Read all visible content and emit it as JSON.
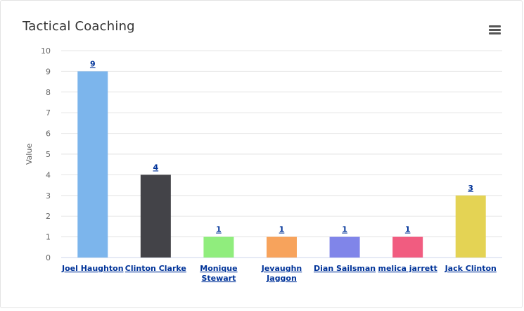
{
  "card": {
    "title": "Tactical Coaching",
    "menu_icon": "hamburger-menu-icon"
  },
  "chart_data": {
    "type": "bar",
    "categories": [
      "Joel Haughton",
      "Clinton Clarke",
      "Monique Stewart",
      "Jevaughn Jaggon",
      "Dian Sailsman",
      "melica jarrett",
      "Jack Clinton"
    ],
    "values": [
      9,
      4,
      1,
      1,
      1,
      1,
      3
    ],
    "data_labels": [
      "9",
      "4",
      "1",
      "1",
      "1",
      "1",
      "3"
    ],
    "colors": [
      "#7cb5ec",
      "#434348",
      "#90ed7d",
      "#f7a35c",
      "#8085e9",
      "#f15c80",
      "#e4d354"
    ],
    "title": "Tactical Coaching",
    "xlabel": "",
    "ylabel": "Value",
    "ylim": [
      0,
      10
    ],
    "yticks": [
      "0",
      "1",
      "2",
      "3",
      "4",
      "5",
      "6",
      "7",
      "8",
      "9",
      "10"
    ],
    "grid": true,
    "legend": "none"
  }
}
